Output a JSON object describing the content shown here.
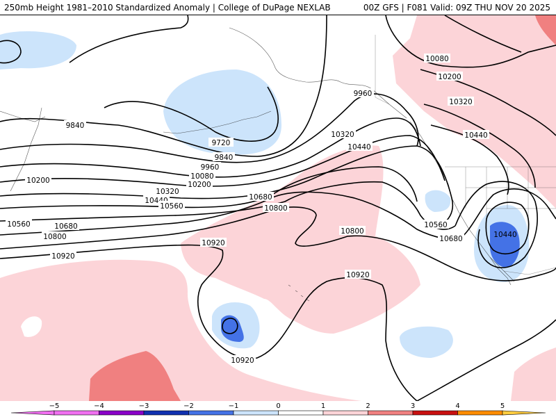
{
  "header": {
    "title_left": "250mb Height 1981–2010 Standardized Anomaly | College of DuPage NEXLAB",
    "title_right": "00Z GFS | F081 Valid: 09Z THU NOV 20 2025"
  },
  "map": {
    "contour_labels": [
      "9720",
      "9840",
      "9840",
      "9960",
      "9960",
      "10080",
      "10080",
      "10200",
      "10200",
      "10200",
      "10320",
      "10320",
      "10320",
      "10440",
      "10440",
      "10440",
      "10440",
      "10560",
      "10560",
      "10560",
      "10680",
      "10680",
      "10680",
      "10800",
      "10800",
      "10800",
      "10920",
      "10920",
      "10920",
      "10920"
    ],
    "anomaly_colors": {
      "neg3": "#4472e6",
      "neg1": "#cce4fb",
      "pos1": "#fcd4d8",
      "pos2": "#f08080"
    }
  },
  "colorbar": {
    "ticks": [
      "−5",
      "−4",
      "−3",
      "−2",
      "−1",
      "0",
      "1",
      "2",
      "3",
      "4",
      "5"
    ],
    "colors": [
      "#f070f0",
      "#8a00c8",
      "#1030b0",
      "#4472e6",
      "#cce4fb",
      "#ffffff",
      "#fcd4d8",
      "#f08080",
      "#c81010",
      "#ff8c00",
      "#ffcc40"
    ]
  }
}
